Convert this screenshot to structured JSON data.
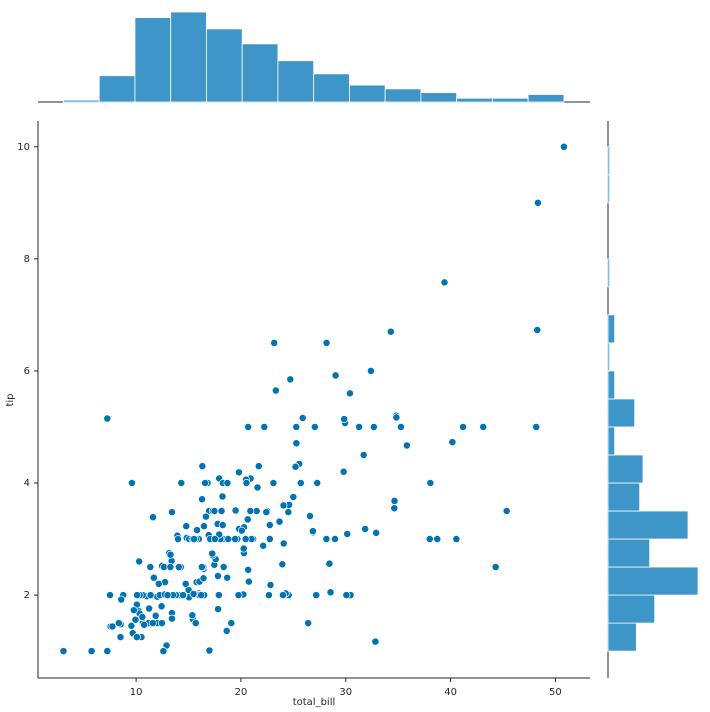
{
  "chart_data": [
    {
      "type": "scatter",
      "xlabel": "total_bill",
      "ylabel": "tip",
      "color": "#0173b2",
      "xlim": [
        0.64,
        53.3
      ],
      "ylim": [
        0.52,
        10.46
      ],
      "xticks": [
        10,
        20,
        30,
        40,
        50
      ],
      "yticks": [
        2,
        4,
        6,
        8,
        10
      ],
      "x": [
        16.99,
        10.34,
        21.01,
        23.68,
        24.59,
        25.29,
        8.77,
        26.88,
        15.04,
        14.78,
        10.27,
        35.26,
        15.42,
        18.43,
        14.83,
        21.58,
        10.33,
        16.29,
        16.97,
        20.65,
        17.92,
        20.29,
        15.77,
        39.42,
        19.82,
        17.81,
        13.37,
        12.69,
        21.7,
        19.65,
        9.55,
        18.35,
        15.06,
        20.69,
        17.78,
        24.06,
        16.31,
        16.93,
        18.69,
        31.27,
        16.04,
        17.46,
        13.94,
        9.68,
        30.4,
        18.29,
        22.23,
        32.4,
        28.55,
        18.04,
        12.54,
        10.29,
        34.81,
        9.94,
        25.56,
        19.49,
        38.01,
        26.41,
        11.24,
        48.27,
        20.29,
        13.81,
        11.02,
        18.29,
        17.59,
        20.08,
        16.45,
        3.07,
        20.23,
        15.01,
        12.02,
        17.07,
        26.86,
        25.28,
        14.73,
        10.51,
        17.92,
        27.2,
        22.76,
        17.29,
        19.44,
        16.66,
        10.07,
        32.68,
        15.98,
        34.83,
        13.03,
        18.28,
        24.71,
        21.16,
        28.97,
        22.49,
        5.75,
        16.32,
        22.75,
        40.17,
        27.28,
        12.03,
        21.01,
        12.46,
        11.35,
        15.38,
        44.3,
        22.42,
        20.92,
        15.36,
        20.49,
        25.21,
        18.24,
        14.31,
        14.0,
        7.25,
        38.07,
        23.95,
        25.71,
        17.31,
        29.93,
        10.65,
        12.43,
        24.08,
        11.69,
        13.42,
        14.26,
        15.95,
        12.48,
        29.8,
        8.52,
        14.52,
        11.38,
        22.82,
        19.08,
        20.27,
        11.17,
        12.26,
        18.26,
        8.51,
        10.33,
        14.15,
        16.0,
        13.16,
        17.47,
        34.3,
        41.19,
        27.05,
        16.43,
        8.35,
        18.64,
        11.87,
        9.78,
        7.51,
        14.07,
        13.13,
        17.26,
        24.55,
        19.77,
        29.85,
        48.17,
        25.0,
        13.39,
        16.49,
        21.5,
        12.66,
        16.21,
        13.81,
        17.51,
        24.52,
        20.76,
        31.71,
        10.59,
        10.63,
        50.81,
        15.81,
        7.25,
        31.85,
        16.82,
        32.9,
        17.89,
        14.48,
        9.6,
        34.63,
        34.65,
        23.33,
        45.35,
        23.17,
        40.55,
        20.69,
        20.9,
        30.46,
        18.15,
        23.1,
        15.69,
        19.81,
        28.44,
        15.48,
        16.58,
        7.56,
        10.34,
        43.11,
        13.0,
        13.51,
        18.71,
        12.74,
        13.0,
        16.4,
        20.53,
        16.47,
        26.59,
        38.73,
        24.27,
        12.76,
        30.06,
        25.89,
        48.33,
        13.27,
        28.17,
        12.9,
        28.15,
        11.59,
        7.74,
        30.14,
        12.16,
        13.42,
        8.58,
        15.98,
        13.42,
        16.27,
        10.09,
        20.45,
        13.28,
        22.12,
        24.01,
        15.69,
        11.61,
        10.77,
        15.53,
        10.07,
        12.6,
        32.83,
        35.83,
        29.03,
        27.18,
        22.67,
        17.82,
        18.78
      ],
      "values": [
        1.01,
        1.66,
        3.5,
        3.31,
        3.61,
        4.71,
        2.0,
        3.12,
        1.96,
        3.23,
        1.71,
        5.0,
        1.57,
        3.0,
        3.02,
        3.92,
        1.67,
        3.71,
        3.5,
        3.35,
        4.08,
        2.75,
        2.23,
        7.58,
        3.18,
        2.34,
        2.0,
        2.0,
        4.3,
        3.0,
        1.45,
        2.5,
        3.0,
        2.45,
        3.27,
        3.6,
        2.0,
        3.07,
        2.31,
        5.0,
        2.24,
        2.54,
        3.06,
        1.32,
        5.6,
        3.0,
        5.0,
        6.0,
        2.05,
        3.0,
        2.5,
        2.6,
        5.2,
        1.56,
        4.34,
        3.51,
        3.0,
        1.5,
        1.76,
        6.73,
        3.21,
        2.0,
        1.98,
        3.76,
        2.64,
        3.15,
        2.47,
        1.0,
        2.01,
        2.09,
        1.97,
        3.0,
        3.14,
        5.0,
        2.2,
        1.25,
        3.08,
        4.0,
        3.0,
        2.71,
        3.0,
        3.4,
        1.83,
        5.0,
        2.03,
        5.17,
        2.0,
        4.0,
        5.85,
        3.0,
        3.0,
        3.5,
        1.0,
        4.3,
        3.25,
        4.73,
        4.0,
        1.5,
        3.0,
        1.5,
        2.5,
        3.0,
        2.5,
        3.48,
        4.08,
        1.64,
        4.06,
        4.29,
        3.76,
        4.0,
        3.0,
        1.0,
        4.0,
        2.55,
        4.0,
        3.5,
        5.07,
        1.5,
        1.8,
        2.92,
        2.31,
        1.68,
        2.5,
        2.0,
        2.52,
        4.2,
        1.48,
        2.0,
        2.0,
        2.18,
        1.5,
        2.83,
        1.5,
        2.0,
        3.25,
        1.25,
        2.0,
        2.0,
        2.0,
        2.75,
        3.5,
        6.7,
        5.0,
        5.0,
        2.3,
        1.5,
        1.36,
        1.63,
        1.73,
        2.0,
        2.5,
        2.0,
        2.74,
        2.0,
        2.0,
        5.14,
        5.0,
        3.75,
        2.61,
        2.0,
        3.5,
        2.5,
        2.0,
        2.0,
        3.0,
        3.48,
        2.24,
        4.5,
        1.61,
        2.0,
        10.0,
        3.16,
        5.15,
        3.18,
        4.0,
        3.11,
        2.0,
        2.0,
        4.0,
        3.55,
        3.68,
        5.65,
        3.5,
        6.5,
        3.0,
        5.0,
        3.5,
        2.0,
        3.5,
        4.0,
        1.5,
        4.19,
        2.56,
        2.02,
        4.0,
        1.44,
        2.0,
        5.0,
        2.0,
        2.0,
        4.0,
        2.01,
        2.0,
        2.5,
        4.0,
        3.23,
        3.41,
        3.0,
        2.03,
        2.23,
        2.0,
        5.16,
        9.0,
        2.5,
        6.5,
        1.1,
        3.0,
        1.5,
        1.44,
        3.09,
        2.2,
        3.48,
        1.92,
        3.0,
        1.58,
        2.5,
        2.0,
        3.0,
        2.72,
        2.88,
        2.0,
        3.0,
        3.39,
        1.47,
        3.0,
        1.25,
        1.0,
        1.17,
        4.67,
        5.92,
        2.0,
        2.0,
        1.75,
        3.0
      ]
    },
    {
      "type": "histogram",
      "color": "#3e95c8",
      "bins": [
        3.07,
        6.48,
        9.89,
        13.3,
        16.71,
        20.12,
        23.53,
        26.94,
        30.35,
        33.76,
        37.17,
        40.58,
        43.99,
        47.4,
        50.81
      ],
      "values": [
        1,
        14,
        45,
        48,
        39,
        31,
        22,
        15,
        9,
        7,
        5,
        2,
        2,
        4
      ]
    },
    {
      "type": "histogram",
      "orientation": "horizontal",
      "color": "#3e95c8",
      "bins": [
        1,
        1.5,
        2,
        2.5,
        3,
        3.5,
        4,
        4.5,
        5,
        5.5,
        6,
        6.5,
        7,
        7.5,
        8,
        8.5,
        9,
        9.5,
        10
      ],
      "values": [
        17,
        28,
        54,
        25,
        48,
        19,
        21,
        4,
        16,
        4,
        1,
        4,
        0,
        1,
        0,
        0,
        1,
        1
      ]
    }
  ]
}
